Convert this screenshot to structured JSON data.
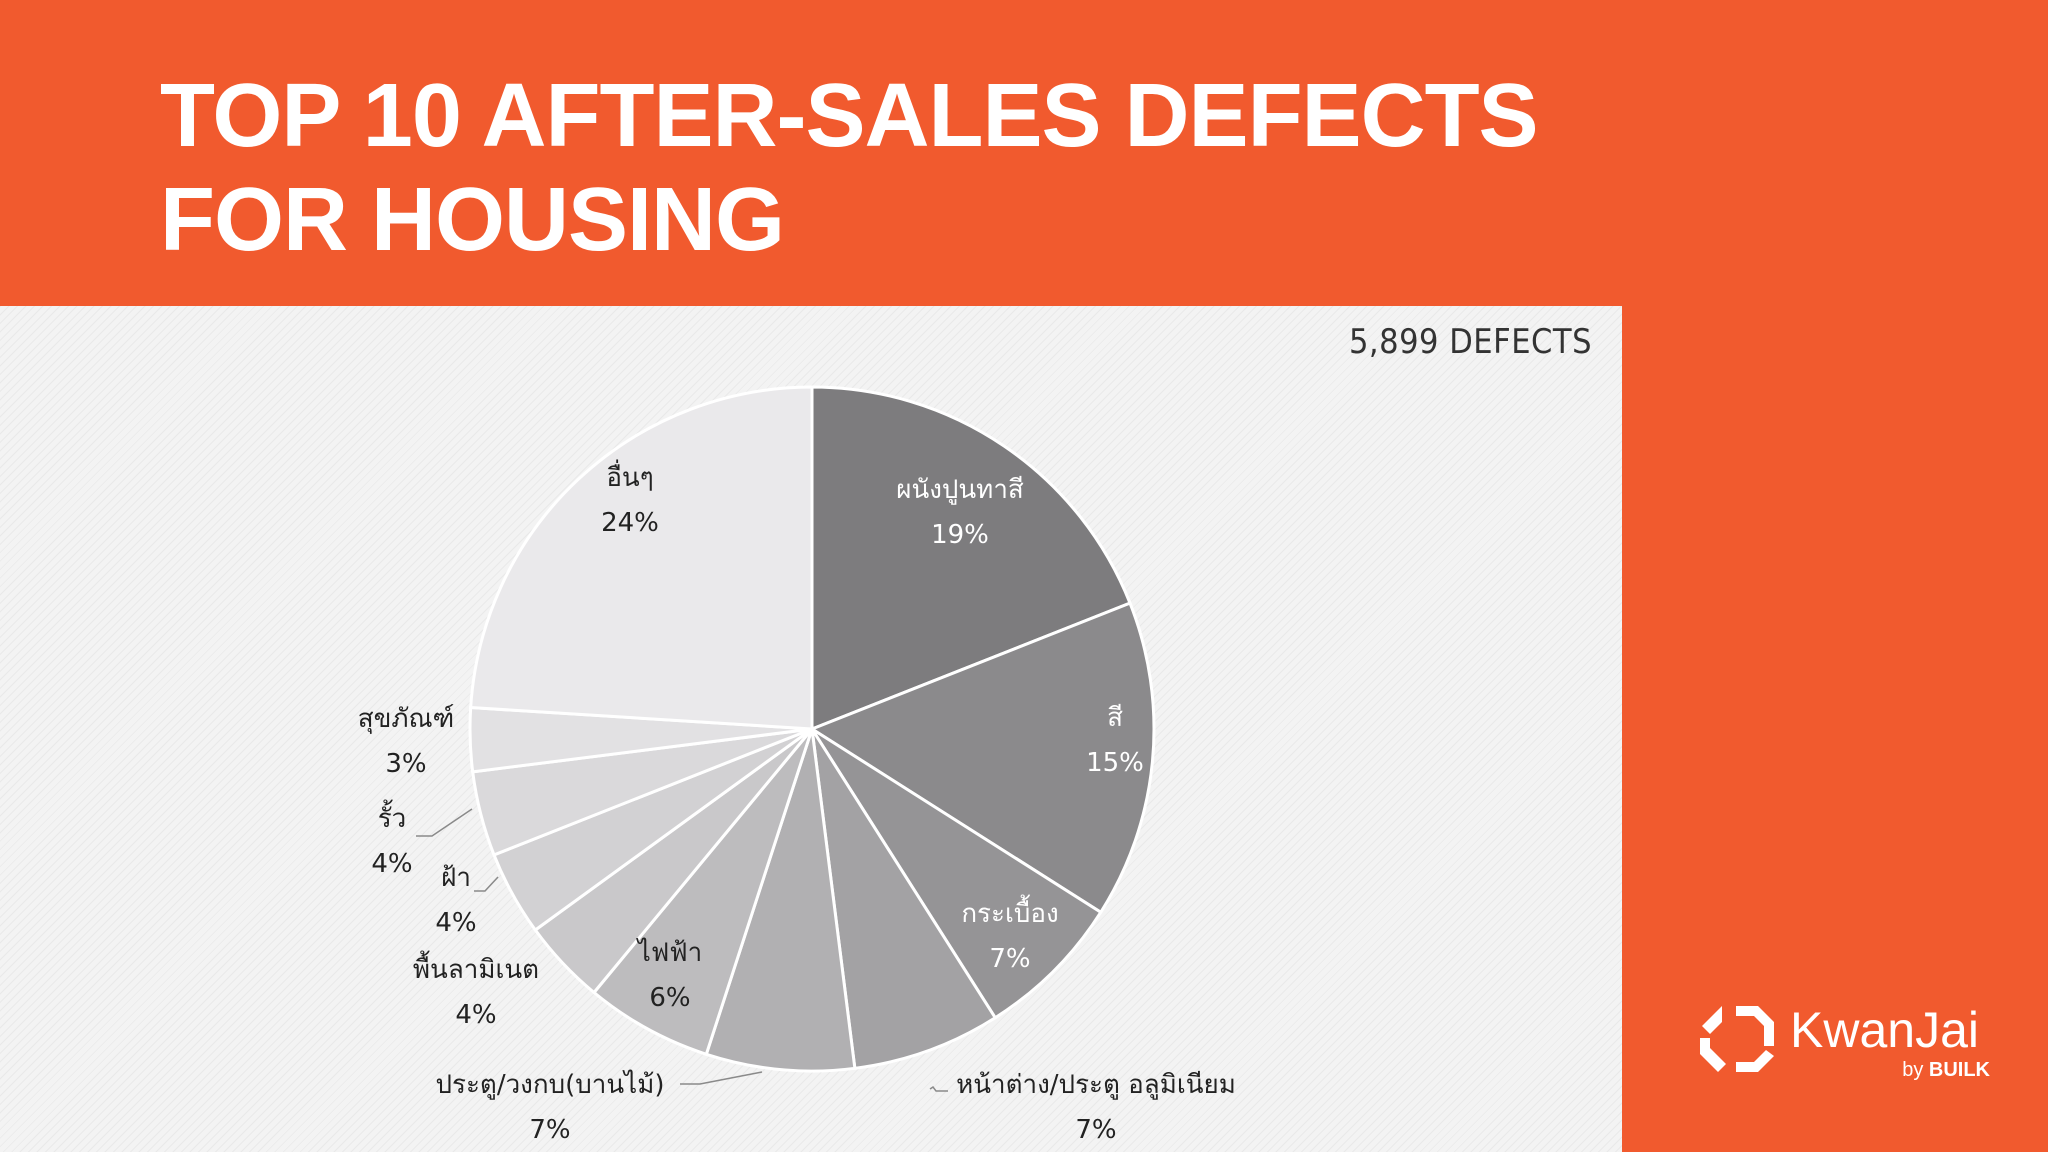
{
  "header": {
    "title_line1": "TOP 10 AFTER-SALES DEFECTS",
    "title_line2": "FOR HOUSING"
  },
  "total_label": "5,899 DEFECTS",
  "brand": {
    "name": "KwanJai",
    "by": "by",
    "company": "BUILK"
  },
  "colors": {
    "accent": "#f15a2e",
    "panel": "#f3f3f3"
  },
  "chart_data": {
    "type": "pie",
    "title": "TOP 10 AFTER-SALES DEFECTS FOR HOUSING",
    "total": "5,899 DEFECTS",
    "slices": [
      {
        "label": "ผนังปูนทาสี",
        "value": 19,
        "pct_label": "19%",
        "color": "#7d7c7e"
      },
      {
        "label": "สี",
        "value": 15,
        "pct_label": "15%",
        "color": "#8b8a8c"
      },
      {
        "label": "กระเบื้อง",
        "value": 7,
        "pct_label": "7%",
        "color": "#959496"
      },
      {
        "label": "หน้าต่าง/ประตู อลูมิเนียม",
        "value": 7,
        "pct_label": "7%",
        "color": "#a3a2a4"
      },
      {
        "label": "ประตู/วงกบ(บานไม้)",
        "value": 7,
        "pct_label": "7%",
        "color": "#b1b0b2"
      },
      {
        "label": "ไฟฟ้า",
        "value": 6,
        "pct_label": "6%",
        "color": "#bdbcbe"
      },
      {
        "label": "พื้นลามิเนต",
        "value": 4,
        "pct_label": "4%",
        "color": "#c9c8ca"
      },
      {
        "label": "ฝ้า",
        "value": 4,
        "pct_label": "4%",
        "color": "#d2d1d3"
      },
      {
        "label": "รั้ว",
        "value": 4,
        "pct_label": "4%",
        "color": "#dad9db"
      },
      {
        "label": "สุขภัณฑ์",
        "value": 3,
        "pct_label": "3%",
        "color": "#e2e1e3"
      },
      {
        "label": "อื่นๆ",
        "value": 24,
        "pct_label": "24%",
        "color": "#eae9eb"
      }
    ]
  }
}
